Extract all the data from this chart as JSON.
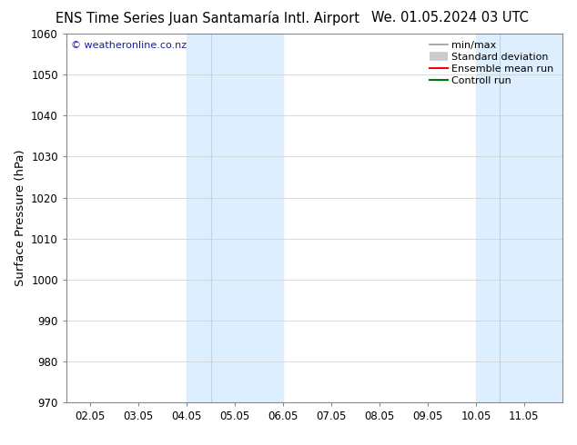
{
  "title_left": "ENS Time Series Juan Santamaría Intl. Airport",
  "title_right": "We. 01.05.2024 03 UTC",
  "ylabel": "Surface Pressure (hPa)",
  "ylim": [
    970,
    1060
  ],
  "yticks": [
    970,
    980,
    990,
    1000,
    1010,
    1020,
    1030,
    1040,
    1050,
    1060
  ],
  "x_tick_labels": [
    "02.05",
    "03.05",
    "04.05",
    "05.05",
    "06.05",
    "07.05",
    "08.05",
    "09.05",
    "10.05",
    "11.05"
  ],
  "x_tick_positions": [
    1,
    2,
    3,
    4,
    5,
    6,
    7,
    8,
    9,
    10
  ],
  "xlim": [
    0.5,
    10.8
  ],
  "shade_bands": [
    {
      "xstart": 3.0,
      "xend": 3.5,
      "color": "#ddeeff"
    },
    {
      "xstart": 3.5,
      "xend": 5.0,
      "color": "#ddeeff"
    },
    {
      "xstart": 9.0,
      "xend": 9.5,
      "color": "#ddeeff"
    },
    {
      "xstart": 9.5,
      "xend": 10.8,
      "color": "#ddeeff"
    }
  ],
  "shade_dividers": [
    3.5,
    9.5
  ],
  "shade_color": "#ddeeff",
  "shade_band_ranges": [
    {
      "xstart": 3.0,
      "xend": 5.0
    },
    {
      "xstart": 9.0,
      "xend": 10.8
    }
  ],
  "watermark": "© weatheronline.co.nz",
  "watermark_color": "#1a1aaa",
  "legend_items": [
    {
      "label": "min/max",
      "color": "#999999",
      "lw": 1.2,
      "style": "line"
    },
    {
      "label": "Standard deviation",
      "color": "#cccccc",
      "lw": 7,
      "style": "band"
    },
    {
      "label": "Ensemble mean run",
      "color": "#ff0000",
      "lw": 1.5,
      "style": "line"
    },
    {
      "label": "Controll run",
      "color": "#007700",
      "lw": 1.5,
      "style": "line"
    }
  ],
  "bg_color": "#ffffff",
  "grid_color": "#cccccc",
  "spine_color": "#888888",
  "title_fontsize": 10.5,
  "axis_fontsize": 9.5,
  "tick_fontsize": 8.5,
  "legend_fontsize": 8
}
